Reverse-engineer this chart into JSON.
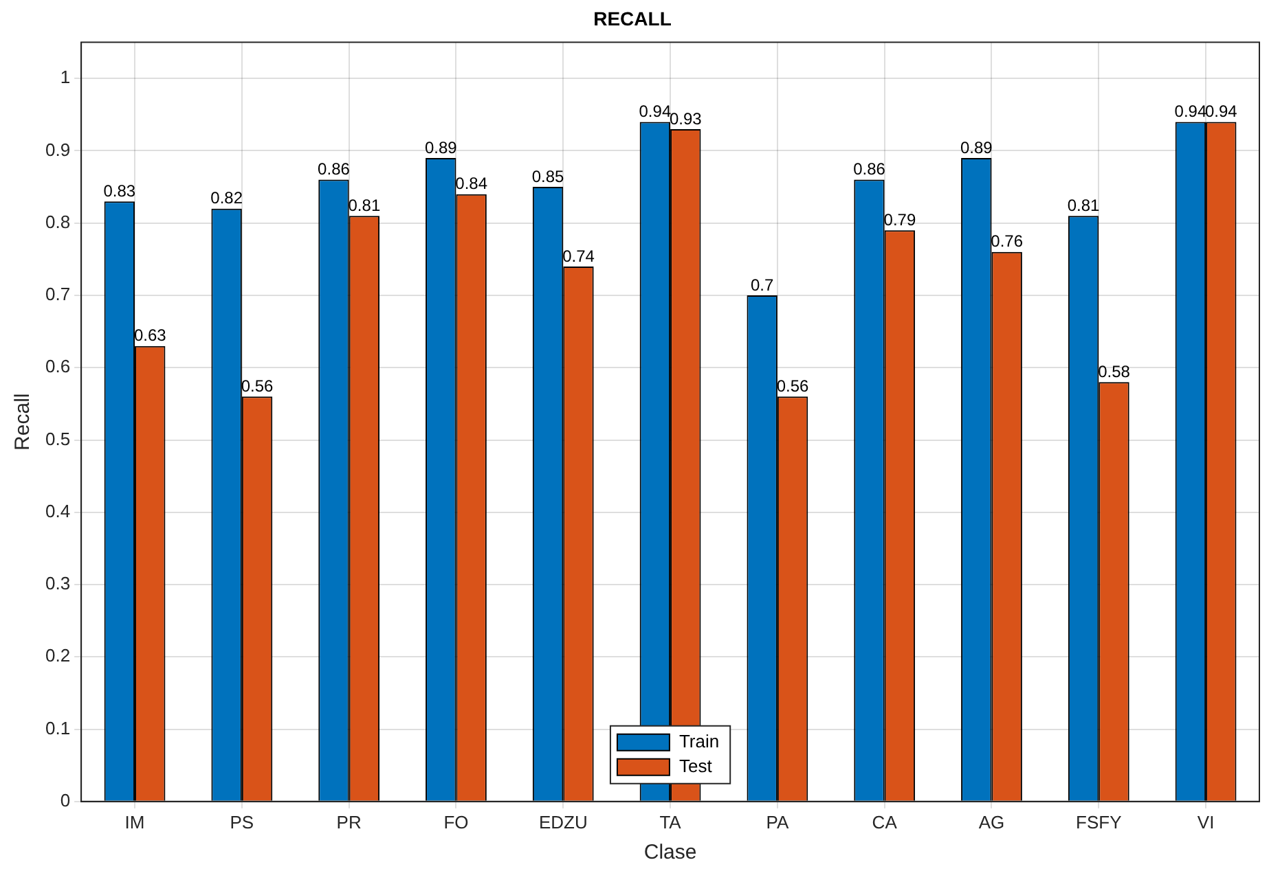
{
  "chart_data": {
    "type": "bar",
    "title": "RECALL",
    "xlabel": "Clase",
    "ylabel": "Recall",
    "categories": [
      "IM",
      "PS",
      "PR",
      "FO",
      "EDZU",
      "TA",
      "PA",
      "CA",
      "AG",
      "FSFY",
      "VI"
    ],
    "series": [
      {
        "name": "Train",
        "color": "#0072bd",
        "values": [
          0.83,
          0.82,
          0.86,
          0.89,
          0.85,
          0.94,
          0.7,
          0.86,
          0.89,
          0.81,
          0.94
        ]
      },
      {
        "name": "Test",
        "color": "#d95319",
        "values": [
          0.63,
          0.56,
          0.81,
          0.84,
          0.74,
          0.93,
          0.56,
          0.79,
          0.76,
          0.58,
          0.94
        ]
      }
    ],
    "ylim": [
      0,
      1.05
    ],
    "yticks": [
      0,
      0.1,
      0.2,
      0.3,
      0.4,
      0.5,
      0.6,
      0.7,
      0.8,
      0.9,
      1
    ],
    "grid": true,
    "legend": "bottom",
    "data_labels": true
  }
}
